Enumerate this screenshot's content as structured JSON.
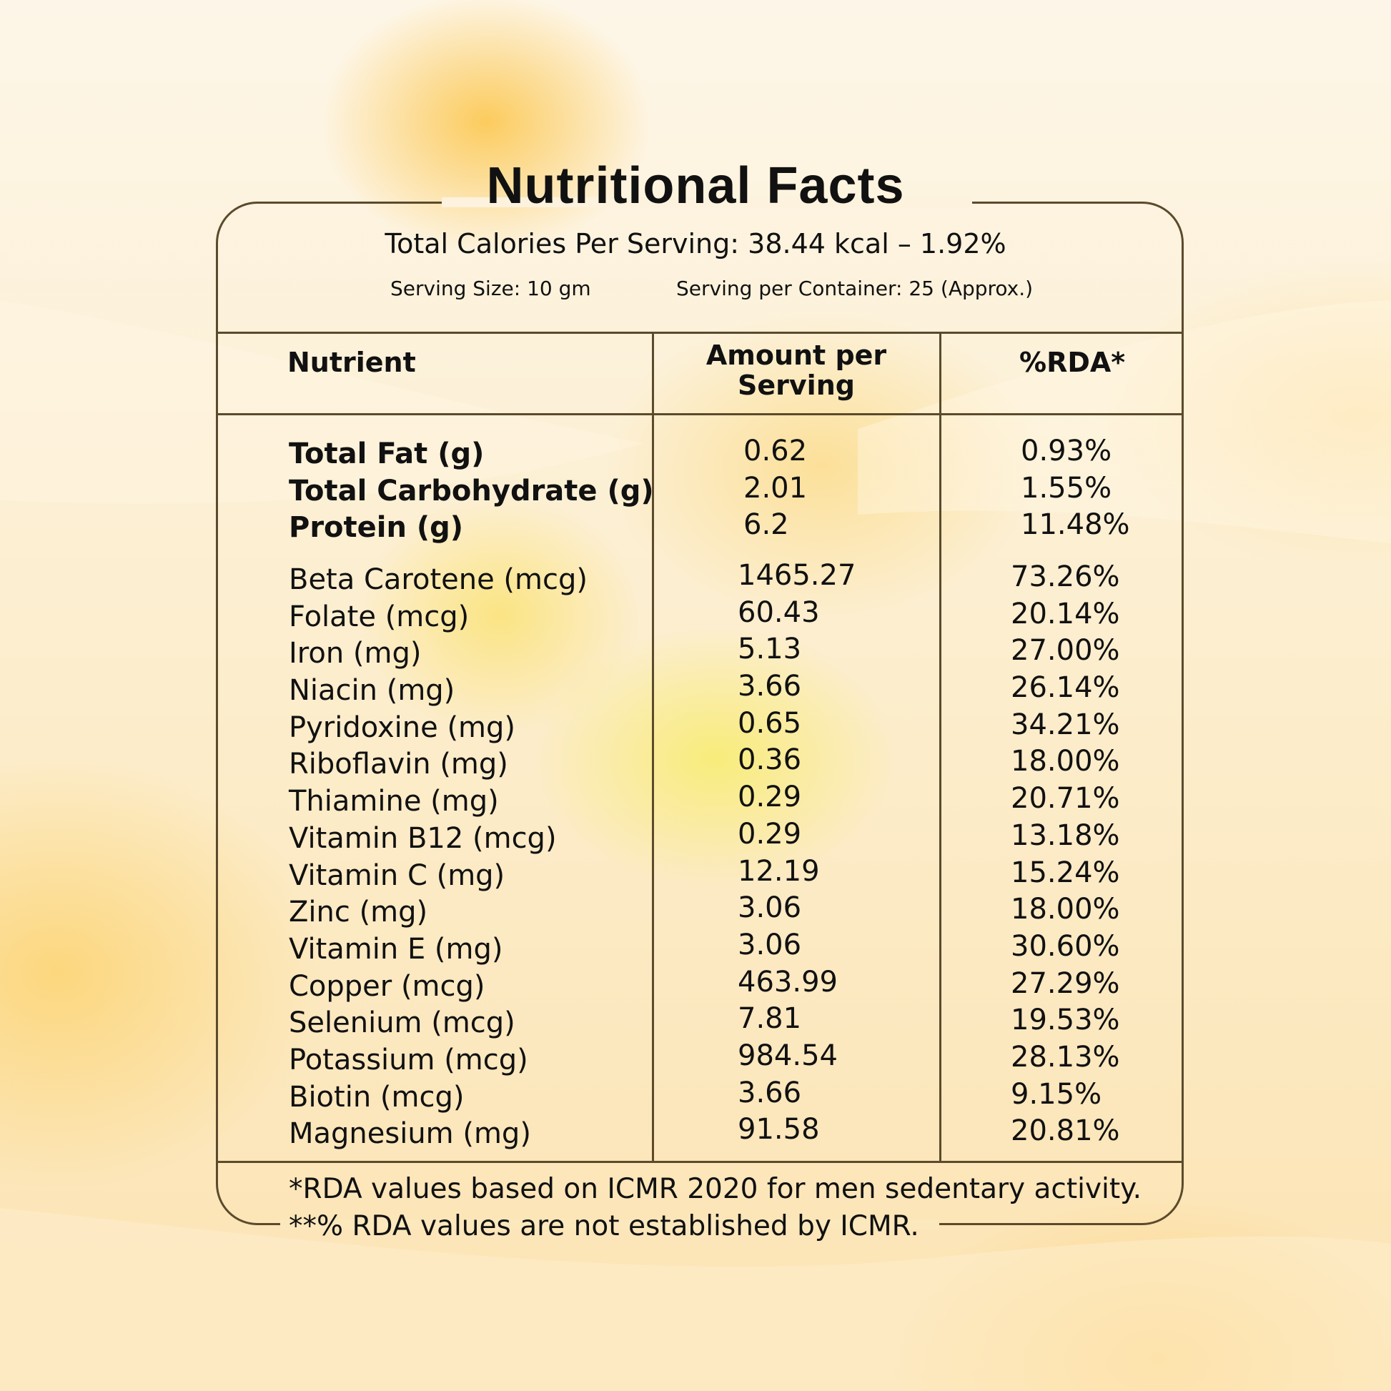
{
  "title": "Nutritional Facts",
  "calories_line": "Total Calories Per Serving: 38.44 kcal – 1.92%",
  "serving_size": "Serving Size: 10 gm",
  "serving_per_container": "Serving per Container: 25 (Approx.)",
  "table": {
    "headers": {
      "nutrient": "Nutrient",
      "amount_line1": "Amount per",
      "amount_line2": "Serving",
      "rda": "%RDA*"
    },
    "macros": [
      {
        "nutrient": "Total Fat (g)",
        "amount": "0.62",
        "rda": "0.93%"
      },
      {
        "nutrient": "Total Carbohydrate (g)",
        "amount": "2.01",
        "rda": "1.55%"
      },
      {
        "nutrient": "Protein (g)",
        "amount": "6.2",
        "rda": "11.48%"
      }
    ],
    "micros": [
      {
        "nutrient": "Beta Carotene (mcg)",
        "amount": "1465.27",
        "rda": "73.26%"
      },
      {
        "nutrient": "Folate (mcg)",
        "amount": "60.43",
        "rda": "20.14%"
      },
      {
        "nutrient": "Iron (mg)",
        "amount": "5.13",
        "rda": "27.00%"
      },
      {
        "nutrient": "Niacin (mg)",
        "amount": "3.66",
        "rda": "26.14%"
      },
      {
        "nutrient": "Pyridoxine (mg)",
        "amount": "0.65",
        "rda": "34.21%"
      },
      {
        "nutrient": "Riboflavin (mg)",
        "amount": "0.36",
        "rda": "18.00%"
      },
      {
        "nutrient": "Thiamine (mg)",
        "amount": "0.29",
        "rda": "20.71%"
      },
      {
        "nutrient": "Vitamin B12 (mcg)",
        "amount": "0.29",
        "rda": "13.18%"
      },
      {
        "nutrient": "Vitamin C (mg)",
        "amount": "12.19",
        "rda": "15.24%"
      },
      {
        "nutrient": "Zinc (mg)",
        "amount": "3.06",
        "rda": "18.00%"
      },
      {
        "nutrient": "Vitamin E (mg)",
        "amount": "3.06",
        "rda": "30.60%"
      },
      {
        "nutrient": "Copper (mcg)",
        "amount": "463.99",
        "rda": "27.29%"
      },
      {
        "nutrient": "Selenium (mcg)",
        "amount": "7.81",
        "rda": "19.53%"
      },
      {
        "nutrient": "Potassium (mcg)",
        "amount": "984.54",
        "rda": "28.13%"
      },
      {
        "nutrient": "Biotin (mcg)",
        "amount": "3.66",
        "rda": "9.15%"
      },
      {
        "nutrient": "Magnesium (mg)",
        "amount": "91.58",
        "rda": "20.81%"
      }
    ]
  },
  "footnotes": [
    "*RDA values based on ICMR 2020 for men sedentary activity.",
    "**% RDA values are not established by ICMR."
  ],
  "colors": {
    "border": "#5b4a2c",
    "text": "#111111",
    "accent_yellow": "#fcc446",
    "background_cream": "#fdf6e8"
  }
}
